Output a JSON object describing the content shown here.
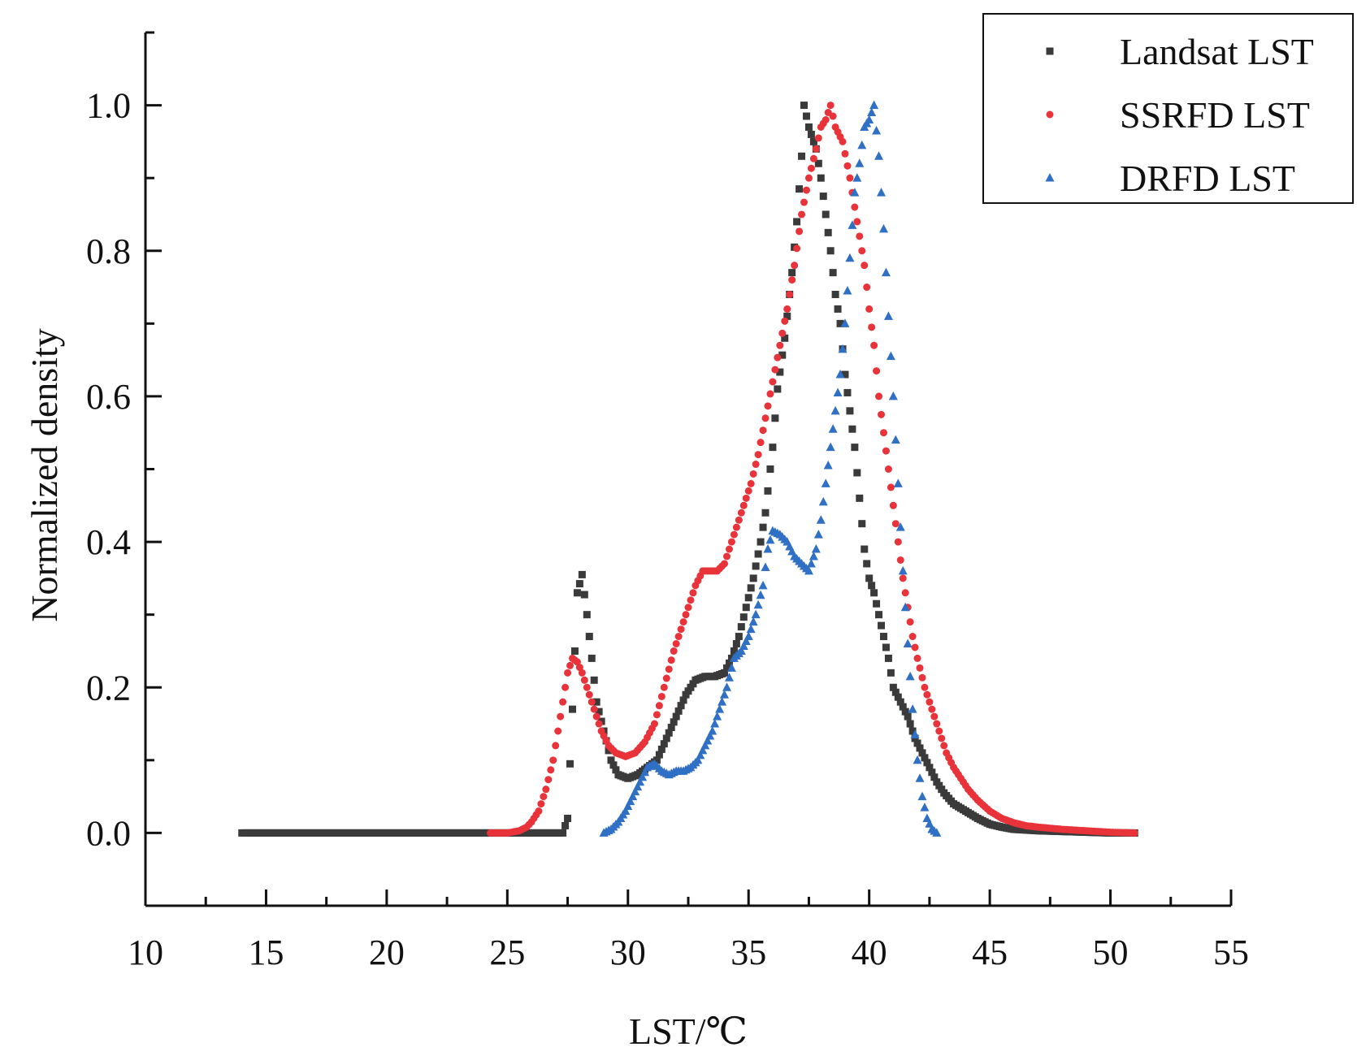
{
  "chart_data": {
    "type": "scatter",
    "title": "",
    "xlabel": "LST/℃",
    "ylabel": "Normalized density",
    "xlim": [
      10,
      55
    ],
    "ylim": [
      -0.1,
      1.1
    ],
    "x_ticks": [
      "10",
      "15",
      "20",
      "25",
      "30",
      "35",
      "40",
      "45",
      "50",
      "55"
    ],
    "y_ticks": [
      "0.0",
      "0.2",
      "0.4",
      "0.6",
      "0.8",
      "1.0"
    ],
    "grid": false,
    "legend_position": "top-right",
    "series": [
      {
        "name": "Landsat LST",
        "marker": "square",
        "color": "#3a3a3a",
        "points": [
          [
            14.0,
            0.0
          ],
          [
            16.0,
            0.0
          ],
          [
            18.0,
            0.0
          ],
          [
            20.0,
            0.0
          ],
          [
            22.0,
            0.0
          ],
          [
            24.0,
            0.0
          ],
          [
            26.0,
            0.0
          ],
          [
            27.3,
            0.0
          ],
          [
            27.5,
            0.02
          ],
          [
            27.7,
            0.17
          ],
          [
            27.9,
            0.33
          ],
          [
            28.1,
            0.355
          ],
          [
            28.3,
            0.3
          ],
          [
            28.5,
            0.24
          ],
          [
            28.7,
            0.18
          ],
          [
            29.0,
            0.14
          ],
          [
            29.3,
            0.1
          ],
          [
            29.6,
            0.08
          ],
          [
            30.0,
            0.075
          ],
          [
            30.4,
            0.08
          ],
          [
            30.8,
            0.09
          ],
          [
            31.2,
            0.1
          ],
          [
            31.6,
            0.13
          ],
          [
            32.0,
            0.16
          ],
          [
            32.4,
            0.19
          ],
          [
            32.8,
            0.21
          ],
          [
            33.2,
            0.215
          ],
          [
            33.6,
            0.215
          ],
          [
            34.0,
            0.22
          ],
          [
            34.3,
            0.24
          ],
          [
            34.6,
            0.27
          ],
          [
            34.9,
            0.31
          ],
          [
            35.2,
            0.35
          ],
          [
            35.5,
            0.4
          ],
          [
            35.7,
            0.44
          ],
          [
            36.0,
            0.53
          ],
          [
            36.2,
            0.61
          ],
          [
            36.5,
            0.68
          ],
          [
            36.8,
            0.77
          ],
          [
            37.0,
            0.84
          ],
          [
            37.2,
            0.93
          ],
          [
            37.3,
            1.0
          ],
          [
            37.5,
            0.97
          ],
          [
            37.8,
            0.94
          ],
          [
            38.0,
            0.9
          ],
          [
            38.2,
            0.85
          ],
          [
            38.4,
            0.8
          ],
          [
            38.6,
            0.74
          ],
          [
            38.8,
            0.7
          ],
          [
            39.0,
            0.63
          ],
          [
            39.2,
            0.58
          ],
          [
            39.4,
            0.53
          ],
          [
            39.6,
            0.46
          ],
          [
            39.8,
            0.39
          ],
          [
            40.0,
            0.35
          ],
          [
            40.2,
            0.33
          ],
          [
            40.4,
            0.3
          ],
          [
            40.6,
            0.27
          ],
          [
            40.8,
            0.24
          ],
          [
            41.0,
            0.2
          ],
          [
            41.3,
            0.18
          ],
          [
            41.6,
            0.16
          ],
          [
            41.9,
            0.13
          ],
          [
            42.2,
            0.11
          ],
          [
            42.5,
            0.09
          ],
          [
            42.8,
            0.07
          ],
          [
            43.1,
            0.055
          ],
          [
            43.5,
            0.04
          ],
          [
            44.0,
            0.03
          ],
          [
            44.5,
            0.02
          ],
          [
            45.0,
            0.012
          ],
          [
            45.5,
            0.008
          ],
          [
            46.0,
            0.005
          ],
          [
            47.0,
            0.003
          ],
          [
            48.0,
            0.002
          ],
          [
            49.0,
            0.001
          ],
          [
            50.0,
            0.0
          ],
          [
            51.0,
            0.0
          ]
        ]
      },
      {
        "name": "SSRFD LST",
        "marker": "circle",
        "color": "#e8333a",
        "points": [
          [
            24.3,
            0.0
          ],
          [
            25.0,
            0.0
          ],
          [
            25.5,
            0.003
          ],
          [
            25.8,
            0.008
          ],
          [
            26.0,
            0.015
          ],
          [
            26.3,
            0.03
          ],
          [
            26.6,
            0.06
          ],
          [
            26.9,
            0.1
          ],
          [
            27.1,
            0.14
          ],
          [
            27.3,
            0.18
          ],
          [
            27.5,
            0.22
          ],
          [
            27.7,
            0.24
          ],
          [
            27.9,
            0.235
          ],
          [
            28.1,
            0.22
          ],
          [
            28.3,
            0.2
          ],
          [
            28.5,
            0.18
          ],
          [
            28.7,
            0.16
          ],
          [
            28.9,
            0.14
          ],
          [
            29.2,
            0.12
          ],
          [
            29.5,
            0.11
          ],
          [
            29.9,
            0.105
          ],
          [
            30.3,
            0.11
          ],
          [
            30.7,
            0.125
          ],
          [
            31.1,
            0.15
          ],
          [
            31.5,
            0.2
          ],
          [
            31.9,
            0.25
          ],
          [
            32.2,
            0.28
          ],
          [
            32.5,
            0.31
          ],
          [
            32.8,
            0.34
          ],
          [
            33.1,
            0.36
          ],
          [
            33.4,
            0.36
          ],
          [
            33.7,
            0.36
          ],
          [
            34.0,
            0.37
          ],
          [
            34.2,
            0.39
          ],
          [
            34.5,
            0.42
          ],
          [
            34.8,
            0.45
          ],
          [
            35.1,
            0.48
          ],
          [
            35.4,
            0.52
          ],
          [
            35.7,
            0.57
          ],
          [
            36.0,
            0.62
          ],
          [
            36.3,
            0.67
          ],
          [
            36.6,
            0.72
          ],
          [
            36.9,
            0.78
          ],
          [
            37.2,
            0.85
          ],
          [
            37.5,
            0.9
          ],
          [
            37.8,
            0.94
          ],
          [
            38.0,
            0.97
          ],
          [
            38.2,
            0.98
          ],
          [
            38.4,
            1.0
          ],
          [
            38.6,
            0.97
          ],
          [
            38.9,
            0.95
          ],
          [
            39.2,
            0.9
          ],
          [
            39.5,
            0.84
          ],
          [
            39.8,
            0.78
          ],
          [
            40.0,
            0.72
          ],
          [
            40.2,
            0.67
          ],
          [
            40.4,
            0.6
          ],
          [
            40.6,
            0.55
          ],
          [
            40.8,
            0.5
          ],
          [
            41.0,
            0.45
          ],
          [
            41.2,
            0.4
          ],
          [
            41.4,
            0.35
          ],
          [
            41.6,
            0.31
          ],
          [
            41.8,
            0.27
          ],
          [
            42.0,
            0.24
          ],
          [
            42.3,
            0.2
          ],
          [
            42.6,
            0.17
          ],
          [
            42.9,
            0.14
          ],
          [
            43.2,
            0.11
          ],
          [
            43.5,
            0.09
          ],
          [
            43.8,
            0.075
          ],
          [
            44.1,
            0.06
          ],
          [
            44.5,
            0.045
          ],
          [
            45.0,
            0.03
          ],
          [
            45.5,
            0.02
          ],
          [
            46.0,
            0.014
          ],
          [
            46.5,
            0.01
          ],
          [
            47.0,
            0.008
          ],
          [
            48.0,
            0.005
          ],
          [
            49.0,
            0.003
          ],
          [
            50.0,
            0.001
          ],
          [
            51.0,
            0.0
          ]
        ]
      },
      {
        "name": "DRFD LST",
        "marker": "triangle",
        "color": "#2f6fc4",
        "points": [
          [
            29.0,
            0.0
          ],
          [
            29.3,
            0.005
          ],
          [
            29.6,
            0.015
          ],
          [
            29.9,
            0.03
          ],
          [
            30.2,
            0.05
          ],
          [
            30.5,
            0.07
          ],
          [
            30.8,
            0.09
          ],
          [
            31.1,
            0.095
          ],
          [
            31.4,
            0.085
          ],
          [
            31.7,
            0.08
          ],
          [
            32.0,
            0.085
          ],
          [
            32.3,
            0.085
          ],
          [
            32.6,
            0.09
          ],
          [
            32.9,
            0.1
          ],
          [
            33.2,
            0.12
          ],
          [
            33.5,
            0.14
          ],
          [
            33.8,
            0.17
          ],
          [
            34.1,
            0.2
          ],
          [
            34.4,
            0.24
          ],
          [
            34.7,
            0.25
          ],
          [
            35.0,
            0.27
          ],
          [
            35.3,
            0.3
          ],
          [
            35.6,
            0.34
          ],
          [
            35.8,
            0.39
          ],
          [
            36.0,
            0.415
          ],
          [
            36.3,
            0.41
          ],
          [
            36.6,
            0.4
          ],
          [
            36.9,
            0.38
          ],
          [
            37.2,
            0.37
          ],
          [
            37.5,
            0.36
          ],
          [
            37.8,
            0.39
          ],
          [
            38.0,
            0.43
          ],
          [
            38.2,
            0.48
          ],
          [
            38.4,
            0.53
          ],
          [
            38.6,
            0.58
          ],
          [
            38.8,
            0.63
          ],
          [
            39.0,
            0.7
          ],
          [
            39.2,
            0.79
          ],
          [
            39.4,
            0.88
          ],
          [
            39.6,
            0.92
          ],
          [
            39.8,
            0.97
          ],
          [
            40.0,
            0.98
          ],
          [
            40.2,
            1.0
          ],
          [
            40.4,
            0.93
          ],
          [
            40.6,
            0.83
          ],
          [
            40.8,
            0.71
          ],
          [
            41.0,
            0.6
          ],
          [
            41.2,
            0.48
          ],
          [
            41.4,
            0.36
          ],
          [
            41.6,
            0.26
          ],
          [
            41.8,
            0.17
          ],
          [
            42.0,
            0.1
          ],
          [
            42.2,
            0.05
          ],
          [
            42.4,
            0.02
          ],
          [
            42.6,
            0.005
          ],
          [
            42.8,
            0.0
          ]
        ]
      }
    ]
  }
}
